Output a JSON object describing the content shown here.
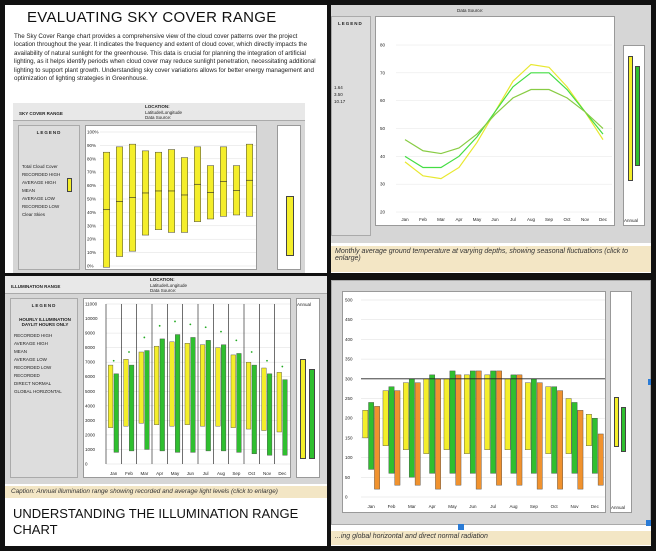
{
  "top_left": {
    "title": "EVALUATING SKY COVER RANGE",
    "paragraph": "The Sky Cover Range chart provides a comprehensive view of the cloud cover patterns over the project location throughout the year. It indicates the frequency and extent of cloud cover, which directly impacts the availability of natural sunlight for the greenhouse. This data is crucial for planning the integration of artificial lighting, as it helps identify periods when cloud cover may reduce sunlight penetration, necessitating additional lighting to support plant growth. Understanding sky cover variations allows for better energy management and optimization of lighting strategies in Greenhouse.",
    "chart_title": "SKY COVER RANGE",
    "location_label": "LOCATION:",
    "latlong": "Latitude/Longitude",
    "source": "Data Source:",
    "legend_title": "LEGEND",
    "legend_items": [
      "Total Cloud Cover",
      "RECORDED HIGH",
      "AVERAGE HIGH",
      "MEAN",
      "AVERAGE LOW",
      "RECORDED LOW",
      "Clear Skies"
    ],
    "y_ticks": [
      "100%",
      "90%",
      "80%",
      "70%",
      "60%",
      "50%",
      "40%",
      "30%",
      "20%",
      "10%",
      "0%"
    ]
  },
  "top_right": {
    "source": "Data Source:",
    "legend_title": "LEGEND",
    "legend_items": [
      "1.64",
      "3.50",
      "10.17"
    ],
    "y_ticks": [
      "80",
      "70",
      "60",
      "50",
      "40",
      "30",
      "20"
    ],
    "months": [
      "Jan",
      "Feb",
      "Mar",
      "Apr",
      "May",
      "Jun",
      "Jul",
      "Aug",
      "Sep",
      "Oct",
      "Nov",
      "Dec"
    ],
    "annual": "Annual",
    "caption": "Monthly average ground temperature at varying depths, showing seasonal fluctuations (click to enlarge)"
  },
  "bottom_left": {
    "chart_title": "ILLUMINATION RANGE",
    "location_label": "LOCATION:",
    "latlong": "Latitude/Longitude",
    "source": "Data Source:",
    "legend_title": "LEGEND",
    "legend_heading": "HOURLY ILLUMINATION DAYLIT HOURS ONLY",
    "legend_items": [
      "RECORDED HIGH",
      "AVERAGE HIGH",
      "MEAN",
      "AVERAGE LOW",
      "RECORDED LOW",
      "RECORDED",
      "DIRECT NORMAL",
      "GLOBAL HORIZONTAL"
    ],
    "y_ticks": [
      "11000",
      "10000",
      "9000",
      "8000",
      "7000",
      "6000",
      "5000",
      "4000",
      "3000",
      "2000",
      "1000",
      "0"
    ],
    "months": [
      "Jan",
      "Feb",
      "Mar",
      "Apr",
      "May",
      "Jun",
      "Jul",
      "Aug",
      "Sep",
      "Oct",
      "Nov",
      "Dec"
    ],
    "annual": "Annual",
    "caption": "Caption:  Annual illumination range showing recorded and average light levels (click to enlarge)",
    "heading": "UNDERSTANDING THE ILLUMINATION RANGE CHART"
  },
  "bottom_right": {
    "y_ticks": [
      "500",
      "450",
      "400",
      "350",
      "300",
      "250",
      "200",
      "150",
      "100",
      "50",
      "0"
    ],
    "months": [
      "Jan",
      "Feb",
      "Mar",
      "Apr",
      "May",
      "Jun",
      "Jul",
      "Aug",
      "Sep",
      "Oct",
      "Nov",
      "Dec"
    ],
    "annual": "Annual",
    "caption": "...ing global horizontal and direct normal radiation"
  },
  "colors": {
    "yellow": "#f4ee2a",
    "green": "#2fbf2f",
    "orange": "#f0922e",
    "light_green": "#9fe06a"
  }
}
